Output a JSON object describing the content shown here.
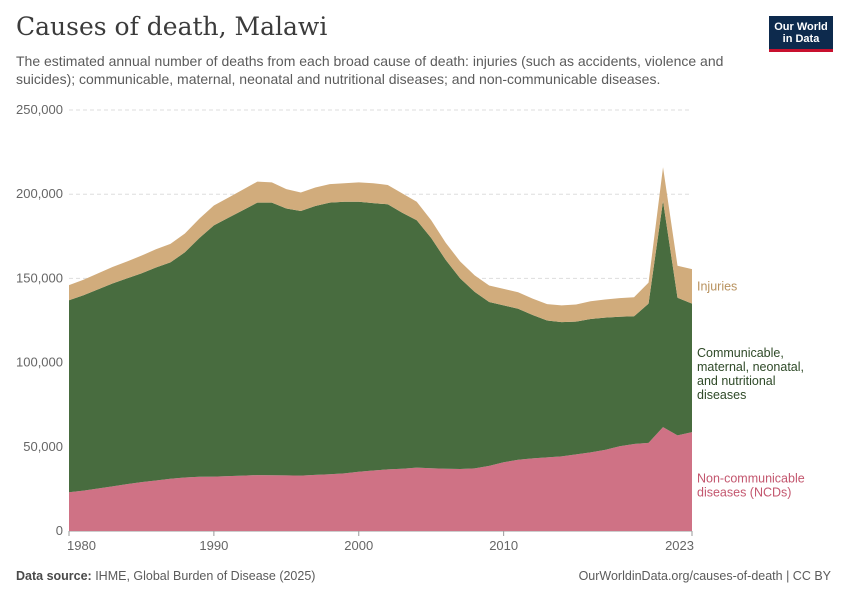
{
  "header": {
    "title": "Causes of death, Malawi",
    "subtitle": "The estimated annual number of deaths from each broad cause of death: injuries (such as accidents, violence and suicides); communicable, maternal, neonatal and nutritional diseases; and non-communicable diseases."
  },
  "logo": {
    "line1": "Our World",
    "line2": "in Data"
  },
  "footer": {
    "source_label": "Data source:",
    "source_text": " IHME, Global Burden of Disease (2025)",
    "url": "OurWorldinData.org/causes-of-death | CC BY"
  },
  "colors": {
    "ncd": "#cf7285",
    "communicable": "#486c3f",
    "injuries": "#d1ac7c",
    "grid": "#dddddd"
  },
  "chart_data": {
    "type": "area",
    "stacked": true,
    "title": "Causes of death, Malawi",
    "x": [
      1980,
      1981,
      1982,
      1983,
      1984,
      1985,
      1986,
      1987,
      1988,
      1989,
      1990,
      1991,
      1992,
      1993,
      1994,
      1995,
      1996,
      1997,
      1998,
      1999,
      2000,
      2001,
      2002,
      2003,
      2004,
      2005,
      2006,
      2007,
      2008,
      2009,
      2010,
      2011,
      2012,
      2013,
      2014,
      2015,
      2016,
      2017,
      2018,
      2019,
      2020,
      2021,
      2022,
      2023
    ],
    "xlim": [
      1980,
      2023
    ],
    "ylim": [
      0,
      250000
    ],
    "yticks": [
      0,
      50000,
      100000,
      150000,
      200000,
      250000
    ],
    "ytick_labels": [
      "0",
      "50,000",
      "100,000",
      "150,000",
      "200,000",
      "250,000"
    ],
    "xticks": [
      1980,
      1990,
      2000,
      2010,
      2023
    ],
    "xtick_labels": [
      "1980",
      "1990",
      "2000",
      "2010",
      "2023"
    ],
    "series": [
      {
        "name": "Non-communicable diseases (NCDs)",
        "label_lines": [
          "Non-communicable",
          "diseases (NCDs)"
        ],
        "color": "#cf7285",
        "values": [
          23000,
          24000,
          25200,
          26500,
          27800,
          29000,
          30000,
          31000,
          31800,
          32200,
          32300,
          32600,
          32900,
          33200,
          33100,
          33000,
          32900,
          33300,
          33700,
          34200,
          35200,
          35900,
          36600,
          37000,
          37600,
          37300,
          37000,
          36800,
          37200,
          38700,
          40800,
          42300,
          43100,
          43700,
          44300,
          45500,
          46700,
          48200,
          50300,
          51700,
          52300,
          61700,
          56800,
          58700
        ]
      },
      {
        "name": "Communicable, maternal, neonatal, and nutritional diseases",
        "label_lines": [
          "Communicable,",
          "maternal, neonatal,",
          "and nutritional",
          "diseases"
        ],
        "color": "#486c3f",
        "values": [
          114000,
          116000,
          118300,
          120500,
          122200,
          124000,
          126500,
          128500,
          133700,
          141800,
          149200,
          153400,
          157600,
          161800,
          161900,
          158500,
          157100,
          159700,
          161300,
          161300,
          160300,
          158800,
          157400,
          152000,
          146900,
          136700,
          124000,
          113200,
          104800,
          97300,
          93200,
          89700,
          85200,
          81300,
          79700,
          78800,
          79200,
          78500,
          76900,
          75800,
          82700,
          134300,
          81700,
          76300
        ]
      },
      {
        "name": "Injuries",
        "label_lines": [
          "Injuries"
        ],
        "color": "#d1ac7c",
        "values": [
          9000,
          9200,
          9500,
          9800,
          10000,
          10500,
          10800,
          11000,
          11200,
          11500,
          11800,
          12000,
          12200,
          12500,
          12000,
          11500,
          11000,
          11000,
          11000,
          11000,
          11500,
          11800,
          11500,
          11500,
          11000,
          10500,
          10200,
          10000,
          9800,
          9800,
          9800,
          9800,
          9700,
          9700,
          10000,
          10200,
          10500,
          10800,
          11100,
          11300,
          12500,
          20000,
          19000,
          20500
        ]
      }
    ]
  }
}
